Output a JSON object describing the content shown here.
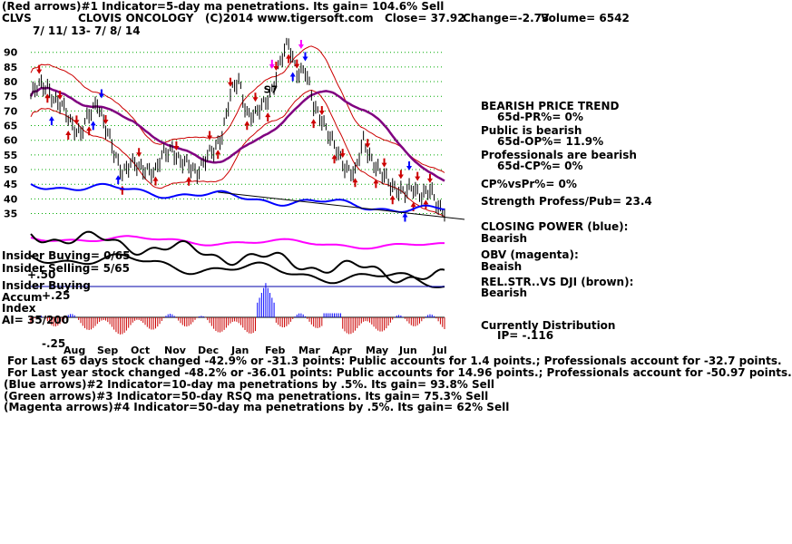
{
  "header": {
    "line1": "(Red arrows)#1 Indicator=5-day ma penetrations. Its gain= 104.6% Sell",
    "ticker": "CLVS",
    "company": "CLOVIS ONCOLOGY",
    "copyright": "(C)2014 www.tigersoft.com",
    "close": "Close=  37.92",
    "change": "Change=-2.73",
    "volume": "Volume= 6542",
    "daterange": "7/ 11/ 13- 7/ 8/ 14"
  },
  "colors": {
    "price": "#000000",
    "ma_red": "#cc0000",
    "ma_purple": "#800080",
    "closing_power": "#0000ff",
    "obv": "#ff00ff",
    "relstr": "#000000",
    "accum_pos": "#0000ff",
    "accum_neg": "#cc0000",
    "grid": "#00aa00"
  },
  "chart_data": {
    "type": "line",
    "x_months": [
      "Aug",
      "Sep",
      "Oct",
      "Nov",
      "Dec",
      "Jan",
      "Feb",
      "Mar",
      "Apr",
      "May",
      "Jun",
      "Jul"
    ],
    "y_ticks": [
      90,
      85,
      80,
      75,
      70,
      65,
      60,
      55,
      50,
      45,
      40,
      35
    ],
    "ylim": [
      33,
      93
    ],
    "price_points": [
      [
        0,
        75
      ],
      [
        4,
        78
      ],
      [
        8,
        79
      ],
      [
        12,
        73
      ],
      [
        16,
        70
      ],
      [
        20,
        66
      ],
      [
        24,
        62
      ],
      [
        28,
        68
      ],
      [
        32,
        74
      ],
      [
        36,
        64
      ],
      [
        40,
        55
      ],
      [
        44,
        50
      ],
      [
        48,
        52
      ],
      [
        52,
        50
      ],
      [
        56,
        51
      ],
      [
        60,
        49
      ],
      [
        64,
        55
      ],
      [
        68,
        58
      ],
      [
        72,
        52
      ],
      [
        76,
        51
      ],
      [
        80,
        50
      ],
      [
        84,
        53
      ],
      [
        88,
        56
      ],
      [
        92,
        63
      ],
      [
        96,
        75
      ],
      [
        100,
        80
      ],
      [
        104,
        70
      ],
      [
        108,
        68
      ],
      [
        112,
        72
      ],
      [
        116,
        78
      ],
      [
        120,
        86
      ],
      [
        124,
        93
      ],
      [
        128,
        84
      ],
      [
        132,
        83
      ],
      [
        136,
        72
      ],
      [
        140,
        68
      ],
      [
        144,
        60
      ],
      [
        148,
        55
      ],
      [
        152,
        51
      ],
      [
        156,
        48
      ],
      [
        160,
        60
      ],
      [
        164,
        54
      ],
      [
        168,
        48
      ],
      [
        172,
        46
      ],
      [
        176,
        44
      ],
      [
        180,
        41
      ],
      [
        184,
        44
      ],
      [
        188,
        42
      ],
      [
        192,
        42
      ],
      [
        196,
        37
      ]
    ],
    "annotations": [
      "S7"
    ],
    "panels": [
      {
        "name": "CLOSING POWER (blue):",
        "value": "Bearish"
      },
      {
        "name": "OBV (magenta):",
        "value": "Beaish"
      },
      {
        "name": "REL.STR..VS DJI (brown):",
        "value": "Bearish"
      }
    ]
  },
  "right_panel": {
    "trend_title": "BEARISH PRICE TREND",
    "trend_val": "65d-PR%= 0%",
    "public_title": "Public is bearish",
    "public_val": "65d-OP%= 11.9%",
    "pros_title": "Professionals are bearish",
    "pros_val": "65d-CP%= 0%",
    "cpvspr": "CP%vsPr%=  0%",
    "strength": "Strength Profess/Pub= 23.4",
    "cp_label": "CLOSING POWER (blue):",
    "cp_val": "Bearish",
    "obv_label": "OBV (magenta):",
    "obv_val": "Beaish",
    "rel_label": "REL.STR..VS DJI (brown):",
    "rel_val": "Bearish",
    "dist_title": "Currently Distribution",
    "dist_val": "IP= -.116"
  },
  "left_panel": {
    "insider_buying": "Insider Buying= 0/65",
    "insider_selling": "Insider Selling= 5/65",
    "plus50": "+.50",
    "insider_buying2": "Insider Buying",
    "accum": "Accum",
    "plus25": "+.25",
    "index": "Index",
    "ai": "AI= 35/200",
    "minus25": "-.25"
  },
  "footer": {
    "l1a": "For Last 65 days stock changed -42.9% or -31.3 points:  Public accounts for  1.4 points.;  Professionals account for -32.7 points.",
    "l2a": "For Last year stock changed -48.2% or -36.01 points:  Public accounts for  14.96 points.;  Professionals account for -50.97 points.",
    "l3": "(Blue arrows)#2 Indicator=10-day ma penetrations by .5%. Its gain= 93.8% Sell",
    "l4": "(Green arrows)#3 Indicator=50-day RSQ ma penetrations. Its gain= 75.3% Sell",
    "l5": "(Magenta arrows)#4 Indicator=50-day ma penetrations by .5%. Its gain= 62% Sell"
  }
}
